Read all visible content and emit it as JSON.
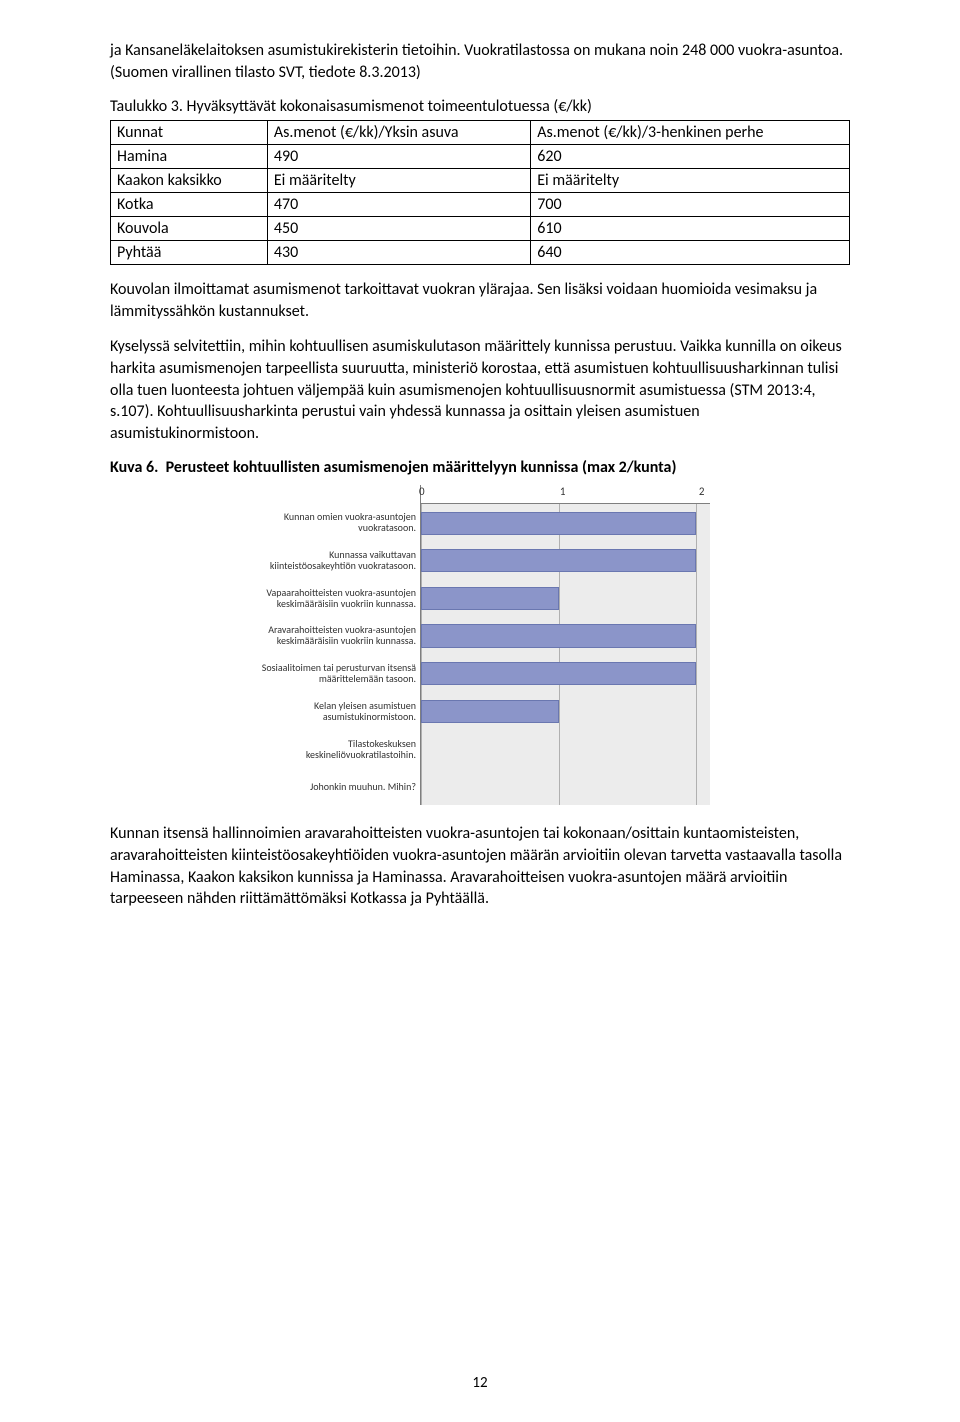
{
  "intro": "ja Kansaneläkelaitoksen asumistukirekisterin tietoihin. Vuokratilastossa on mukana noin 248 000 vuokra-asuntoa. (Suomen virallinen tilasto SVT, tiedote 8.3.2013)",
  "table_title": "Taulukko 3. Hyväksyttävät kokonaisasumismenot toimeentulotuessa (€/kk)",
  "table": {
    "columns": [
      "Kunnat",
      "As.menot (€/kk)/Yksin asuva",
      "As.menot (€/kk)/3-henkinen perhe"
    ],
    "rows": [
      [
        "Hamina",
        "490",
        "620"
      ],
      [
        "Kaakon kaksikko",
        "Ei määritelty",
        "Ei määritelty"
      ],
      [
        "Kotka",
        "470",
        "700"
      ],
      [
        "Kouvola",
        "450",
        "610"
      ],
      [
        "Pyhtää",
        "430",
        "640"
      ]
    ]
  },
  "para2": "Kouvolan ilmoittamat asumismenot tarkoittavat vuokran ylärajaa. Sen lisäksi voidaan huomioida vesimaksu ja lämmityssähkön kustannukset.",
  "para3": "Kyselyssä selvitettiin, mihin kohtuullisen asumiskulutason määrittely kunnissa perustuu. Vaikka kunnilla on oikeus harkita asumismenojen tarpeellista suuruutta, ministeriö korostaa, että asumistuen kohtuullisuusharkinnan tulisi olla tuen luonteesta johtuen väljempää kuin asumismenojen kohtuullisuusnormit asumistuessa (STM 2013:4, s.107). Kohtuullisuusharkinta perustui vain yhdessä kunnassa ja osittain yleisen asumistuen asumistukinormistoon.",
  "kuva_title_prefix": "Kuva 6.",
  "kuva_title_rest": "Perusteet kohtuullisten asumismenojen määrittelyyn kunnissa (max 2/kunta)",
  "chart": {
    "type": "bar",
    "orientation": "horizontal",
    "x_ticks": [
      "0",
      "1",
      "2"
    ],
    "xlim": [
      0,
      2.1
    ],
    "bar_color": "#8b95c9",
    "bar_border": "#6a77b0",
    "plot_bg": "#ececec",
    "grid_color": "#b0b0b0",
    "axis_color": "#7f7f7f",
    "label_fontsize": 10,
    "tick_fontsize": 11,
    "categories": [
      "Kunnan omien vuokra-asuntojen vuokratasoon.",
      "Kunnassa vaikuttavan kiinteistöosakeyhtiön vuokratasoon.",
      "Vapaarahoitteisten vuokra-asuntojen keskimääräisiin vuokriin kunnassa.",
      "Aravarahoitteisten vuokra-asuntojen keskimääräisiin vuokriin kunnassa.",
      "Sosiaalitoimen tai perusturvan itsensä määrittelemään tasoon.",
      "Kelan yleisen asumistuen asumistukinormistoon.",
      "Tilastokeskuksen keskineliövuokratilastoihin.",
      "Johonkin muuhun. Mihin?"
    ],
    "values": [
      2,
      2,
      1,
      2,
      2,
      1,
      0,
      0
    ]
  },
  "para4": "Kunnan itsensä hallinnoimien aravarahoitteisten vuokra-asuntojen tai kokonaan/osittain kuntaomisteisten, aravarahoitteisten kiinteistöosakeyhtiöiden vuokra-asuntojen määrän arvioitiin olevan tarvetta vastaavalla tasolla Haminassa, Kaakon kaksikon kunnissa ja Haminassa. Aravarahoitteisen vuokra-asuntojen määrä arvioitiin tarpeeseen nähden riittämättömäksi Kotkassa ja Pyhtäällä.",
  "page_number": "12"
}
